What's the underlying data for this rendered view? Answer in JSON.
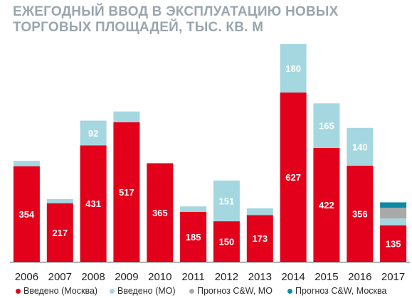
{
  "title_line1": "ЕЖЕГОДНЫЙ ВВОД В ЭКСПЛУАТАЦИЮ НОВЫХ",
  "title_line2": "ТОРГОВЫХ ПЛОЩАДЕЙ, ТЫС. КВ. М",
  "colors": {
    "moscow": "#e2001a",
    "mo": "#a5d7e0",
    "forecast_mo": "#a9a9a9",
    "forecast_moscow": "#0e8aa3",
    "axis": "#444444"
  },
  "chart_data": {
    "type": "bar",
    "stacked": true,
    "categories": [
      "2006",
      "2007",
      "2008",
      "2009",
      "2010",
      "2011",
      "2012",
      "2013",
      "2014",
      "2015",
      "2016",
      "2017"
    ],
    "series": [
      {
        "name": "Введено (Москва)",
        "values": [
          354,
          217,
          431,
          517,
          365,
          185,
          150,
          173,
          627,
          422,
          356,
          135
        ],
        "labels": [
          "354",
          "217",
          "431",
          "517",
          "365",
          "185",
          "150",
          "173",
          "627",
          "422",
          "356",
          "135"
        ]
      },
      {
        "name": "Введено (МО)",
        "values": [
          20,
          15,
          92,
          40,
          0,
          20,
          151,
          25,
          180,
          165,
          140,
          25
        ],
        "labels": [
          "",
          "",
          "92",
          "",
          "",
          "",
          "151",
          "",
          "180",
          "165",
          "140",
          ""
        ]
      },
      {
        "name": "Прогноз C&W, МО",
        "values": [
          0,
          0,
          0,
          0,
          0,
          0,
          0,
          0,
          0,
          0,
          0,
          40
        ],
        "labels": [
          "",
          "",
          "",
          "",
          "",
          "",
          "",
          "",
          "",
          "",
          "",
          ""
        ]
      },
      {
        "name": "Прогноз C&W, Москва",
        "values": [
          0,
          0,
          0,
          0,
          0,
          0,
          0,
          0,
          0,
          0,
          0,
          20
        ],
        "labels": [
          "",
          "",
          "",
          "",
          "",
          "",
          "",
          "",
          "",
          "",
          "",
          ""
        ]
      }
    ],
    "ylim": [
      0,
      850
    ],
    "legend_position": "bottom",
    "grid": false
  }
}
